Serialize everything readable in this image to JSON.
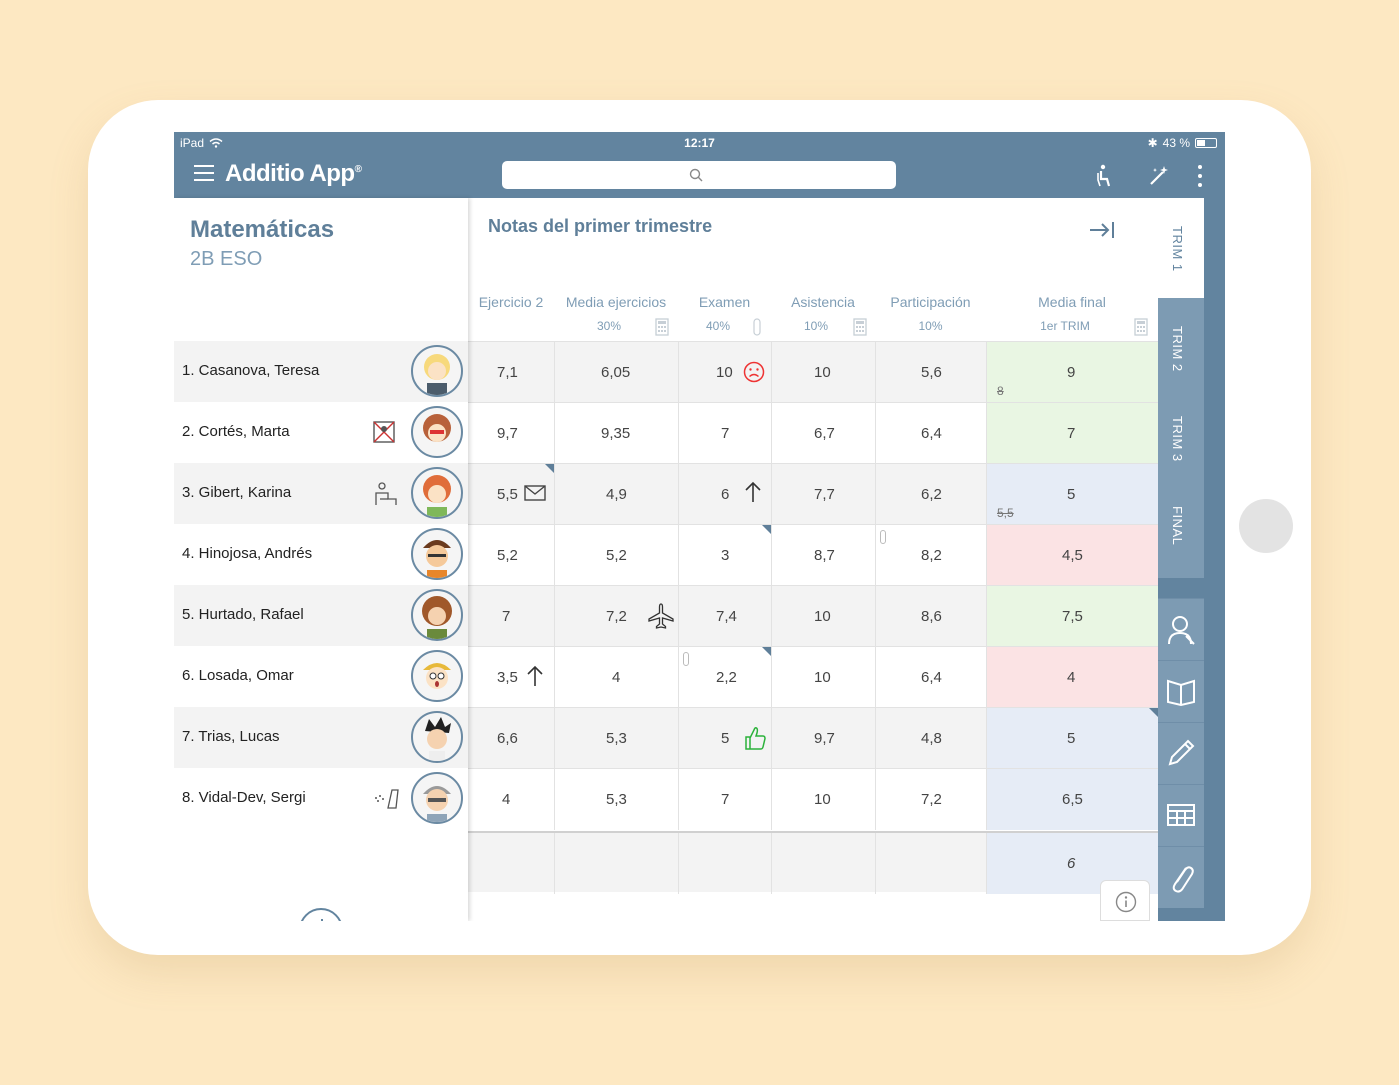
{
  "status": {
    "device": "iPad",
    "time": "12:17",
    "battery": "43 %"
  },
  "app": {
    "name": "Additio App",
    "trademark": "®"
  },
  "class_info": {
    "subject": "Matemáticas",
    "group": "2B ESO"
  },
  "grid": {
    "title": "Notas del primer trimestre",
    "columns": [
      {
        "label": "Ejercicio 2",
        "sub": ""
      },
      {
        "label": "Media ejercicios",
        "sub": "30%"
      },
      {
        "label": "Examen",
        "sub": "40%"
      },
      {
        "label": "Asistencia",
        "sub": "10%"
      },
      {
        "label": "Participación",
        "sub": "10%"
      },
      {
        "label": "Media final",
        "sub": "1er TRIM"
      }
    ],
    "rows": [
      {
        "student": "1. Casanova, Teresa",
        "values": [
          "7,1",
          "6,05",
          "10",
          "10",
          "5,6",
          "9"
        ],
        "old": "8"
      },
      {
        "student": "2. Cortés, Marta",
        "values": [
          "9,7",
          "9,35",
          "7",
          "6,7",
          "6,4",
          "7"
        ],
        "old": ""
      },
      {
        "student": "3. Gibert, Karina",
        "values": [
          "5,5",
          "4,9",
          "6",
          "7,7",
          "6,2",
          "5"
        ],
        "old": "5,5"
      },
      {
        "student": "4. Hinojosa, Andrés",
        "values": [
          "5,2",
          "5,2",
          "3",
          "8,7",
          "8,2",
          "4,5"
        ],
        "old": ""
      },
      {
        "student": "5. Hurtado, Rafael",
        "values": [
          "7",
          "7,2",
          "7,4",
          "10",
          "8,6",
          "7,5"
        ],
        "old": ""
      },
      {
        "student": "6. Losada, Omar",
        "values": [
          "3,5",
          "4",
          "2,2",
          "10",
          "6,4",
          "4"
        ],
        "old": ""
      },
      {
        "student": "7. Trias, Lucas",
        "values": [
          "6,6",
          "5,3",
          "5",
          "9,7",
          "4,8",
          "5"
        ],
        "old": ""
      },
      {
        "student": "8. Vidal-Dev, Sergi",
        "values": [
          "4",
          "5,3",
          "7",
          "10",
          "7,2",
          "6,5"
        ],
        "old": ""
      }
    ],
    "summary": "6"
  },
  "tabs": [
    "TRIM 1",
    "TRIM 2",
    "TRIM 3",
    "FINAL"
  ],
  "icons": {
    "toolbar": [
      "seat-icon",
      "magic-wand-icon",
      "more-vert-icon"
    ],
    "side_tools": [
      "student-icon",
      "book-icon",
      "pencil-icon",
      "table-icon",
      "paperclip-icon"
    ]
  },
  "colors": {
    "primary": "#62849f",
    "pass": "#e9f6e3",
    "neutral": "#e6ecf6",
    "fail": "#fbe3e4"
  }
}
